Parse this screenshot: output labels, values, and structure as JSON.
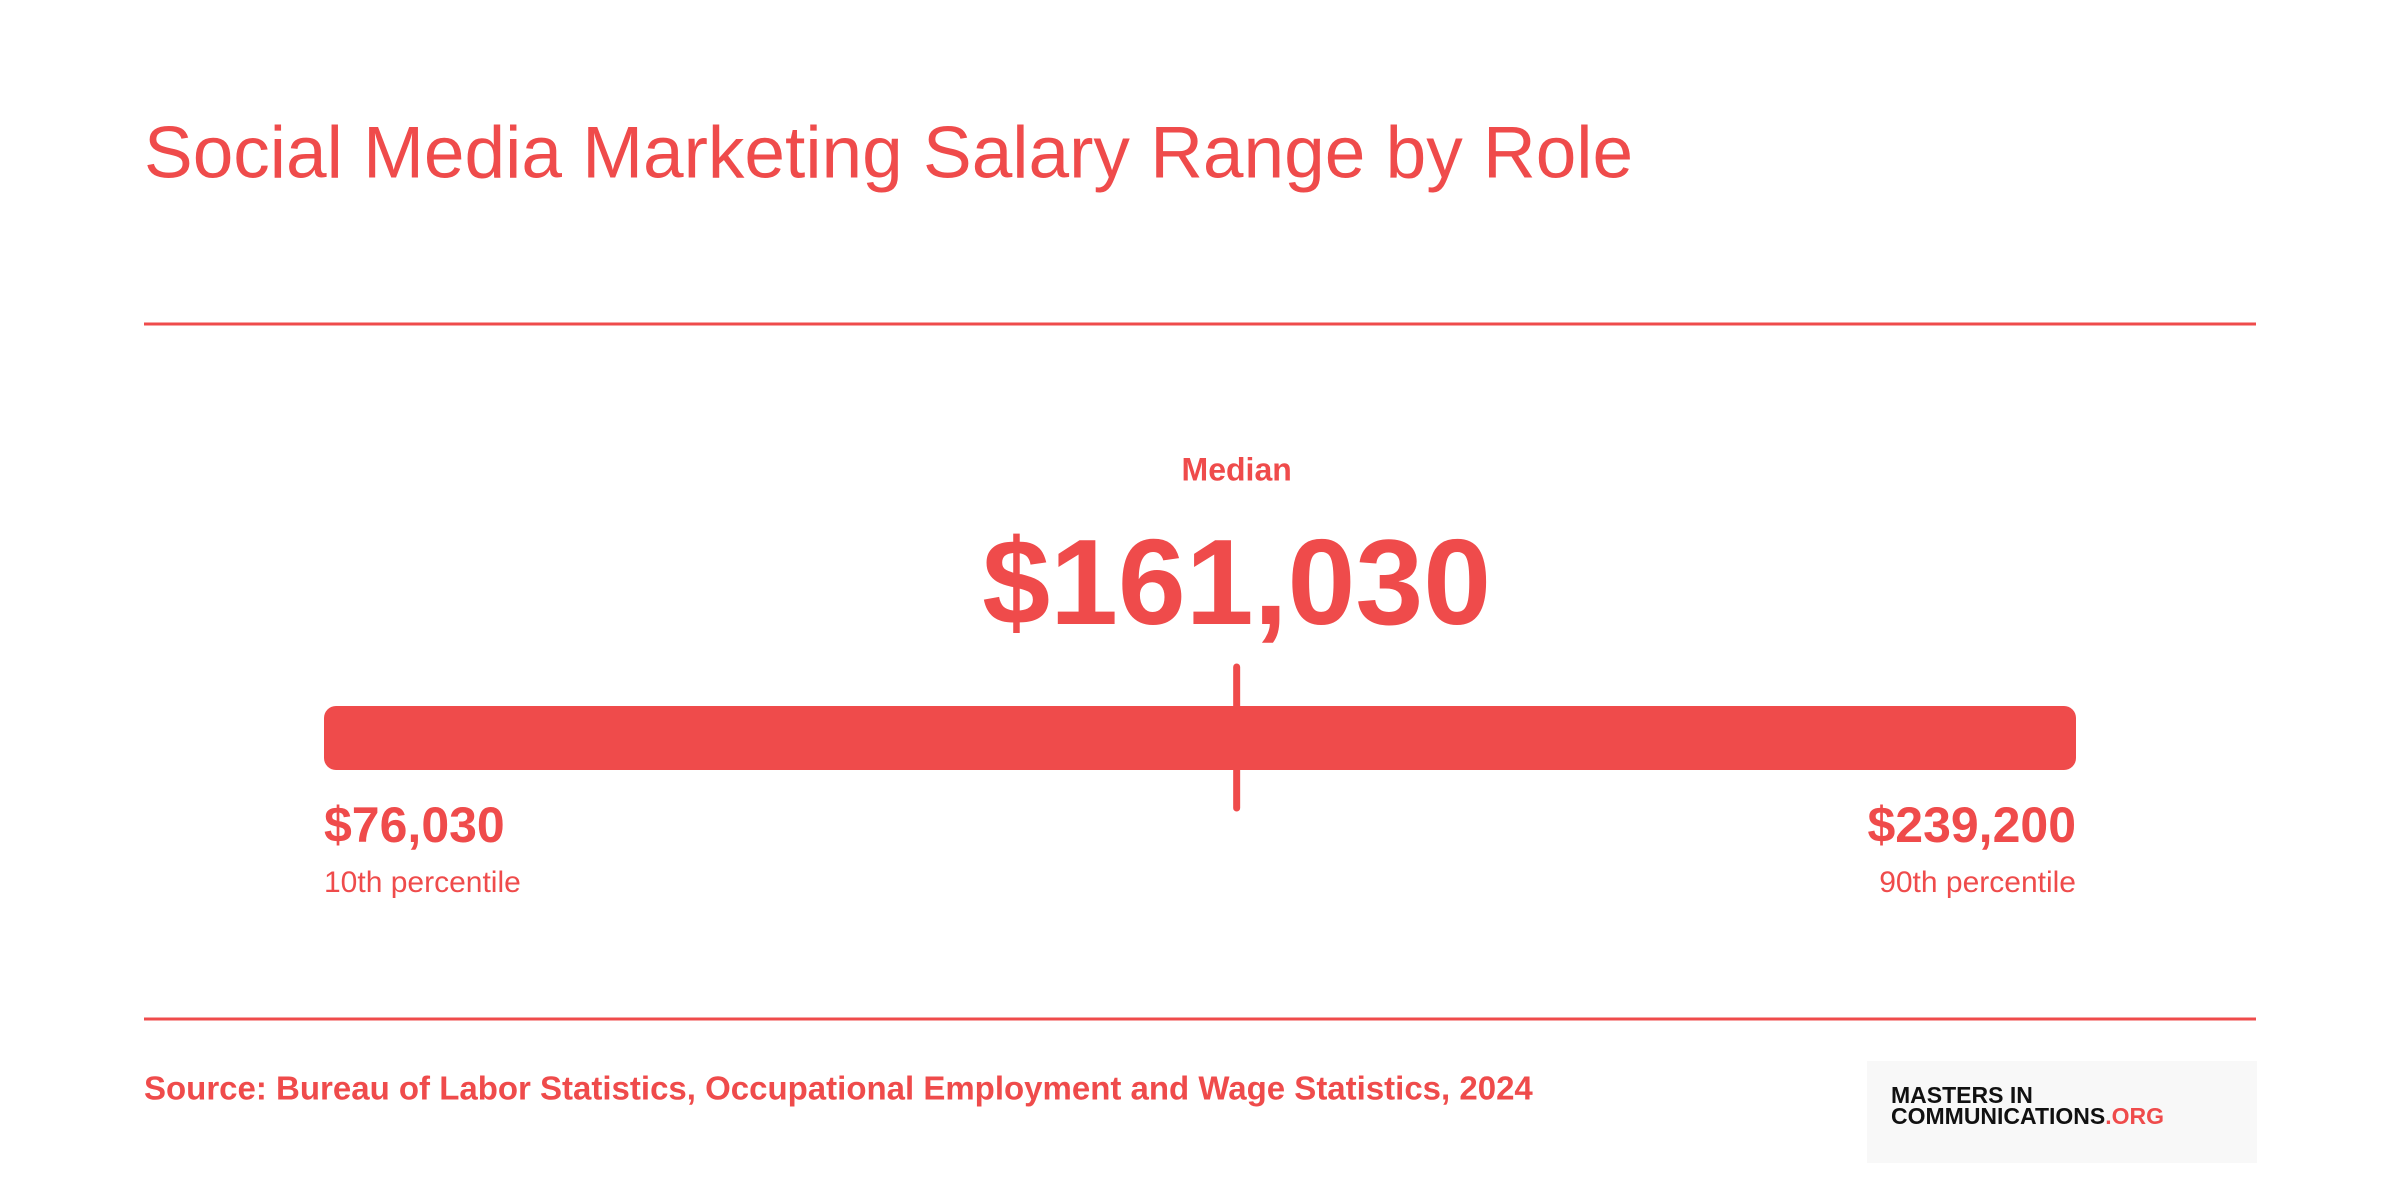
{
  "chart_data": {
    "type": "range",
    "title": "Social Media Marketing Salary Range by Role",
    "categories": [
      "10th percentile",
      "Median",
      "90th percentile"
    ],
    "values": [
      76030,
      161030,
      239200
    ],
    "value_labels": [
      "$76,030",
      "$161,030",
      "$239,200"
    ],
    "color": "#ef4b4b",
    "source": "Source: Bureau of Labor Statistics, Occupational Employment and Wage Statistics, 2024"
  },
  "logo": {
    "line1": "MASTERS IN",
    "line2": "COMMUNICATIONS",
    "suffix": ".ORG"
  }
}
